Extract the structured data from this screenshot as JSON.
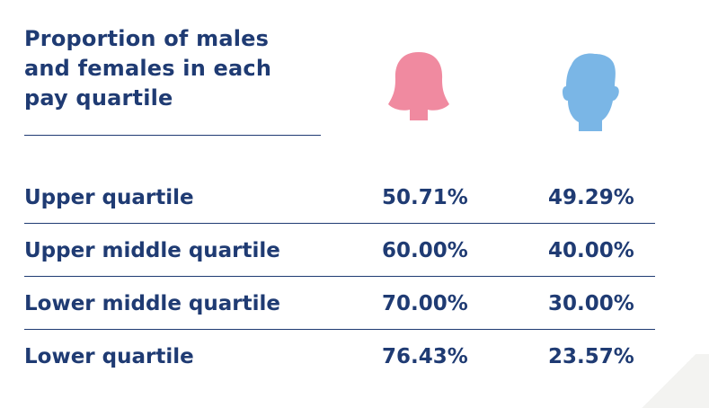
{
  "title": "Proportion of males\nand females in each\npay quartile",
  "icons": {
    "female": "female-head-icon",
    "male": "male-head-icon"
  },
  "colors": {
    "text": "#1f3b73",
    "female": "#f08aa0",
    "male": "#7ab6e6"
  },
  "chart_data": {
    "type": "table",
    "title": "Proportion of males and females in each pay quartile",
    "columns": [
      "female",
      "male"
    ],
    "rows": [
      {
        "label": "Upper quartile",
        "female": "50.71%",
        "male": "49.29%"
      },
      {
        "label": "Upper middle quartile",
        "female": "60.00%",
        "male": "40.00%"
      },
      {
        "label": "Lower middle quartile",
        "female": "70.00%",
        "male": "30.00%"
      },
      {
        "label": "Lower quartile",
        "female": "76.43%",
        "male": "23.57%"
      }
    ]
  }
}
